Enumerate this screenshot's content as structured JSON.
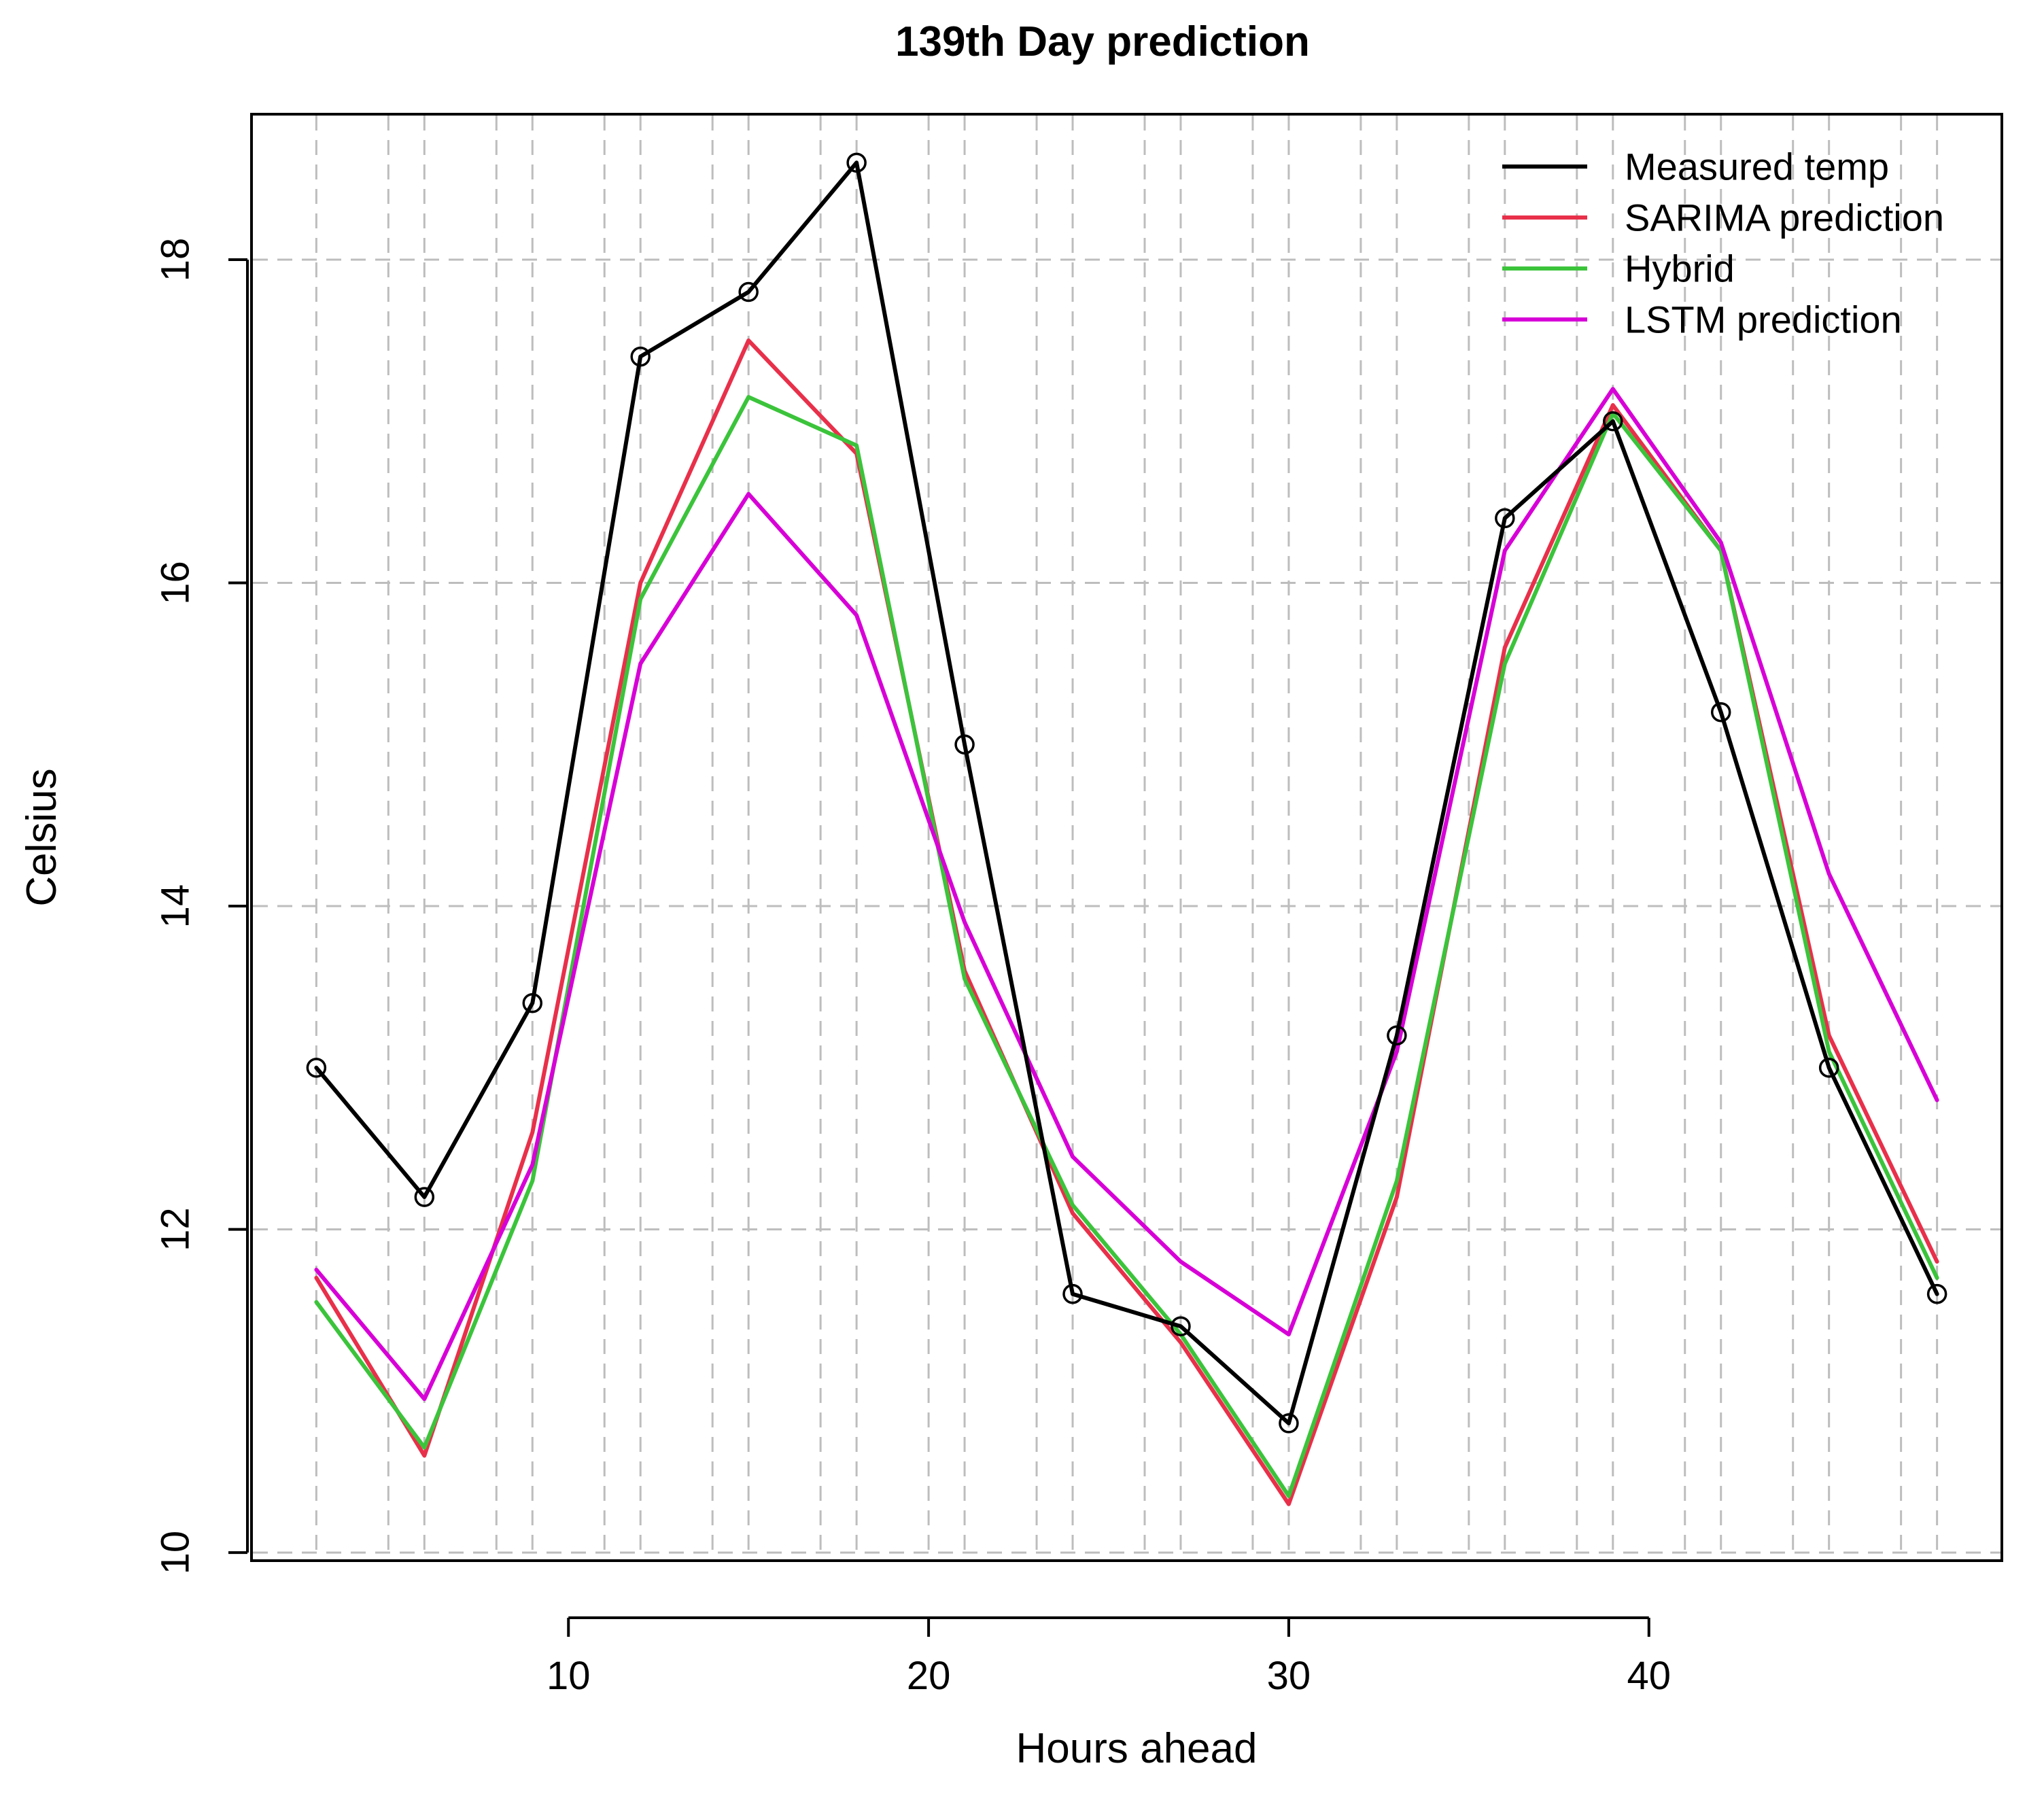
{
  "chart_data": {
    "type": "line",
    "title": "139th Day prediction",
    "xlabel": "Hours ahead",
    "ylabel": "Celsius",
    "xlim": [
      1.2,
      49.8
    ],
    "ylim": [
      9.95,
      18.9
    ],
    "xticks": [
      10,
      20,
      30,
      40
    ],
    "yticks": [
      10,
      12,
      14,
      16,
      18
    ],
    "x_gridlines": [
      3,
      5,
      6,
      8,
      9,
      11,
      12,
      14,
      15,
      17,
      18,
      20,
      21,
      23,
      24,
      26,
      27,
      29,
      30,
      32,
      33,
      35,
      36,
      38,
      39,
      41,
      42,
      44,
      45,
      47,
      48
    ],
    "grid": true,
    "legend": "top-right",
    "x": [
      3,
      6,
      9,
      12,
      15,
      18,
      21,
      24,
      27,
      30,
      33,
      36,
      39,
      42,
      45,
      48
    ],
    "series": [
      {
        "name": "Measured temp",
        "color": "#000000",
        "markers": true,
        "values": [
          13.0,
          12.2,
          13.4,
          17.4,
          17.8,
          18.6,
          15.0,
          11.6,
          11.4,
          10.8,
          13.2,
          16.4,
          17.0,
          15.2,
          13.0,
          11.6
        ]
      },
      {
        "name": "SARIMA prediction",
        "color": "#e8304a",
        "markers": false,
        "values": [
          11.7,
          10.6,
          12.6,
          16.0,
          17.5,
          16.8,
          13.6,
          12.1,
          11.3,
          10.3,
          12.2,
          15.6,
          17.1,
          16.2,
          13.2,
          11.8
        ]
      },
      {
        "name": "Hybrid",
        "color": "#3bc43b",
        "markers": false,
        "values": [
          11.55,
          10.65,
          12.3,
          15.9,
          17.15,
          16.85,
          13.55,
          12.15,
          11.35,
          10.35,
          12.3,
          15.5,
          17.05,
          16.2,
          13.1,
          11.7
        ]
      },
      {
        "name": "LSTM prediction",
        "color": "#d700d7",
        "markers": false,
        "values": [
          11.75,
          10.95,
          12.4,
          15.5,
          16.55,
          15.8,
          13.9,
          12.45,
          11.8,
          11.35,
          13.1,
          16.2,
          17.2,
          16.25,
          14.2,
          12.8
        ]
      }
    ]
  }
}
